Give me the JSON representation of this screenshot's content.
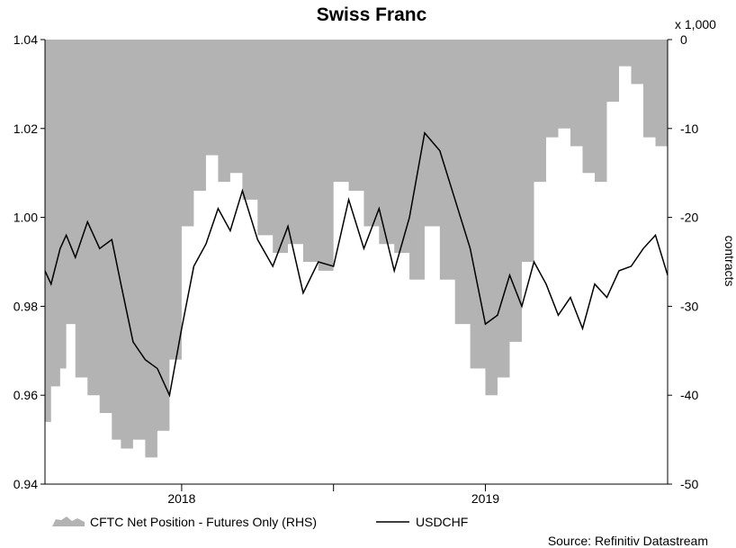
{
  "chart_data": {
    "type": "area",
    "title": "Swiss Franc",
    "source": "Source: Refinitiv Datastream",
    "left_axis": {
      "min": 0.94,
      "max": 1.04,
      "ticks": [
        "0.94",
        "0.96",
        "0.98",
        "1.00",
        "1.02",
        "1.04"
      ]
    },
    "right_axis": {
      "min": -50,
      "max": 0,
      "unit": "x 1,000",
      "label": "contracts",
      "ticks": [
        "-50",
        "-40",
        "-30",
        "-20",
        "-10",
        "0"
      ]
    },
    "x_ticks": [
      "2018",
      "2019"
    ],
    "legend": [
      "CFTC Net Position - Futures Only (RHS)",
      "USDCHF"
    ],
    "series": [
      {
        "name": "CFTC Net Position - Futures Only (RHS)",
        "axis": "right",
        "color": "#b3b3b3",
        "x": [
          2017.55,
          2017.57,
          2017.6,
          2017.62,
          2017.65,
          2017.69,
          2017.73,
          2017.77,
          2017.8,
          2017.84,
          2017.88,
          2017.92,
          2017.96,
          2018.0,
          2018.04,
          2018.08,
          2018.12,
          2018.16,
          2018.2,
          2018.25,
          2018.3,
          2018.35,
          2018.4,
          2018.45,
          2018.5,
          2018.55,
          2018.6,
          2018.65,
          2018.7,
          2018.75,
          2018.8,
          2018.85,
          2018.9,
          2018.95,
          2019.0,
          2019.04,
          2019.08,
          2019.12,
          2019.16,
          2019.2,
          2019.24,
          2019.28,
          2019.32,
          2019.36,
          2019.4,
          2019.44,
          2019.48,
          2019.52,
          2019.56,
          2019.6
        ],
        "values": [
          -43,
          -39,
          -37,
          -32,
          -38,
          -40,
          -42,
          -45,
          -46,
          -45,
          -47,
          -44,
          -36,
          -21,
          -17,
          -13,
          -16,
          -15,
          -18,
          -22,
          -24,
          -23,
          -25,
          -26,
          -16,
          -17,
          -21,
          -23,
          -24,
          -27,
          -21,
          -27,
          -32,
          -37,
          -40,
          -38,
          -34,
          -25,
          -16,
          -11,
          -10,
          -12,
          -15,
          -16,
          -7,
          -3,
          -5,
          -11,
          -12,
          -13
        ]
      },
      {
        "name": "USDCHF",
        "axis": "left",
        "color": "#000000",
        "x": [
          2017.55,
          2017.57,
          2017.6,
          2017.62,
          2017.65,
          2017.69,
          2017.73,
          2017.77,
          2017.8,
          2017.84,
          2017.88,
          2017.92,
          2017.96,
          2018.0,
          2018.04,
          2018.08,
          2018.12,
          2018.16,
          2018.2,
          2018.25,
          2018.3,
          2018.35,
          2018.4,
          2018.45,
          2018.5,
          2018.55,
          2018.6,
          2018.65,
          2018.7,
          2018.75,
          2018.8,
          2018.85,
          2018.9,
          2018.95,
          2019.0,
          2019.04,
          2019.08,
          2019.12,
          2019.16,
          2019.2,
          2019.24,
          2019.28,
          2019.32,
          2019.36,
          2019.4,
          2019.44,
          2019.48,
          2019.52,
          2019.56,
          2019.6
        ],
        "values": [
          0.988,
          0.985,
          0.993,
          0.996,
          0.991,
          0.999,
          0.993,
          0.995,
          0.985,
          0.972,
          0.968,
          0.966,
          0.96,
          0.975,
          0.989,
          0.994,
          1.002,
          0.997,
          1.006,
          0.995,
          0.989,
          0.998,
          0.983,
          0.99,
          0.989,
          1.004,
          0.993,
          1.002,
          0.988,
          1.0,
          1.019,
          1.015,
          1.004,
          0.993,
          0.976,
          0.978,
          0.987,
          0.98,
          0.99,
          0.985,
          0.978,
          0.982,
          0.975,
          0.985,
          0.982,
          0.988,
          0.989,
          0.993,
          0.996,
          0.987
        ]
      }
    ]
  }
}
